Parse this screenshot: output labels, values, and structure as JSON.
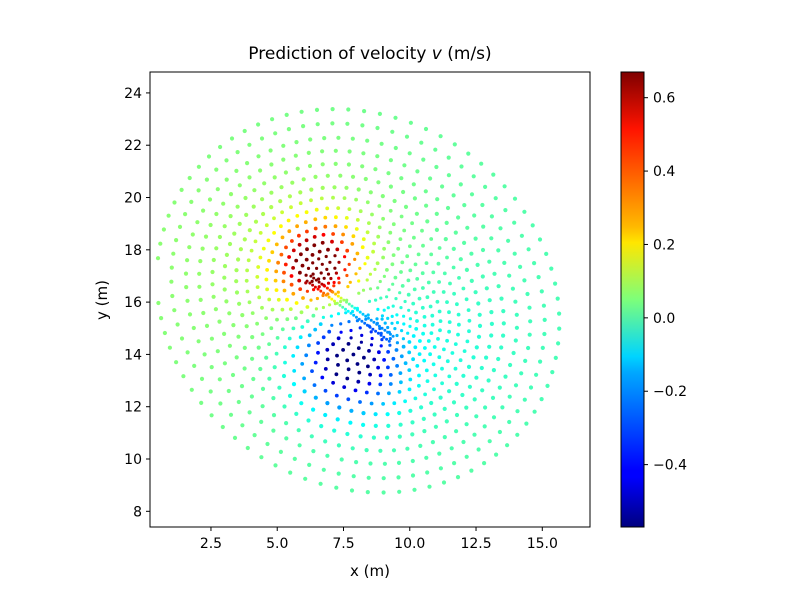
{
  "chart_data": {
    "type": "scatter",
    "title": "Prediction of velocity",
    "title_symbol": "v",
    "title_unit": "(m/s)",
    "xlabel": "x (m)",
    "ylabel": "y (m)",
    "xlim": [
      0.2,
      16.8
    ],
    "ylim": [
      7.4,
      24.8
    ],
    "xticks": [
      2.5,
      5.0,
      7.5,
      10.0,
      12.5,
      15.0
    ],
    "xtick_labels": [
      "2.5",
      "5.0",
      "7.5",
      "10.0",
      "12.5",
      "15.0"
    ],
    "yticks": [
      8,
      10,
      12,
      14,
      16,
      18,
      20,
      22,
      24
    ],
    "ytick_labels": [
      "8",
      "10",
      "12",
      "14",
      "16",
      "18",
      "20",
      "22",
      "24"
    ],
    "colormap": "jet",
    "colorbar": {
      "vmin": -0.57,
      "vmax": 0.67,
      "ticks": [
        -0.4,
        -0.2,
        0.0,
        0.2,
        0.4,
        0.6
      ],
      "tick_labels": [
        "−0.4",
        "−0.2",
        "0.0",
        "0.2",
        "0.4",
        "0.6"
      ]
    },
    "grid": false,
    "field": {
      "description_values": "points sampled on rings around an inclined plate from (6.2,16.9) to (9.3,14.6); colour = predicted v",
      "plate_start": [
        6.2,
        16.9
      ],
      "plate_end": [
        9.3,
        14.6
      ],
      "radii": [
        0.25,
        0.45,
        0.65,
        0.85,
        1.1,
        1.35,
        1.6,
        1.9,
        2.2,
        2.5,
        2.85,
        3.2,
        3.6,
        4.0,
        4.45,
        4.9,
        5.4,
        5.9,
        6.45,
        7.0
      ],
      "peak_positive": {
        "x": 6.5,
        "y": 17.5,
        "v": 0.67
      },
      "peak_negative": {
        "x": 7.7,
        "y": 13.8,
        "v": -0.57
      }
    }
  }
}
